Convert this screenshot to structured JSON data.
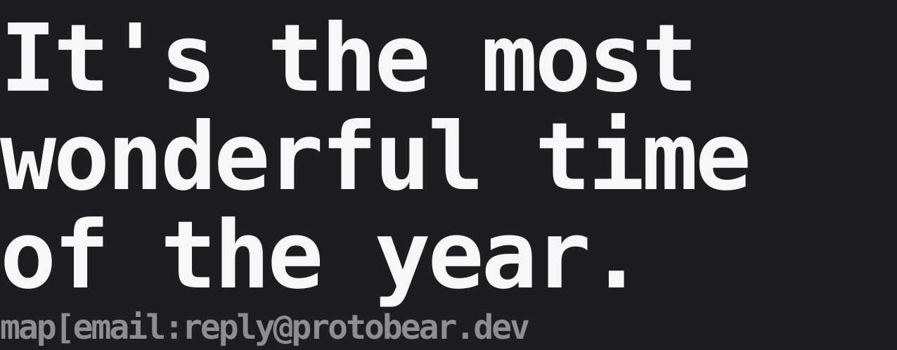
{
  "headline": {
    "lines": [
      "It's the most",
      "wonderful time",
      "of the year."
    ]
  },
  "footer": {
    "text": "map[email:reply@protobear.dev"
  },
  "colors": {
    "background": "#1c1d21",
    "headline": "#f7f7f7",
    "footer": "#8d8e92"
  }
}
